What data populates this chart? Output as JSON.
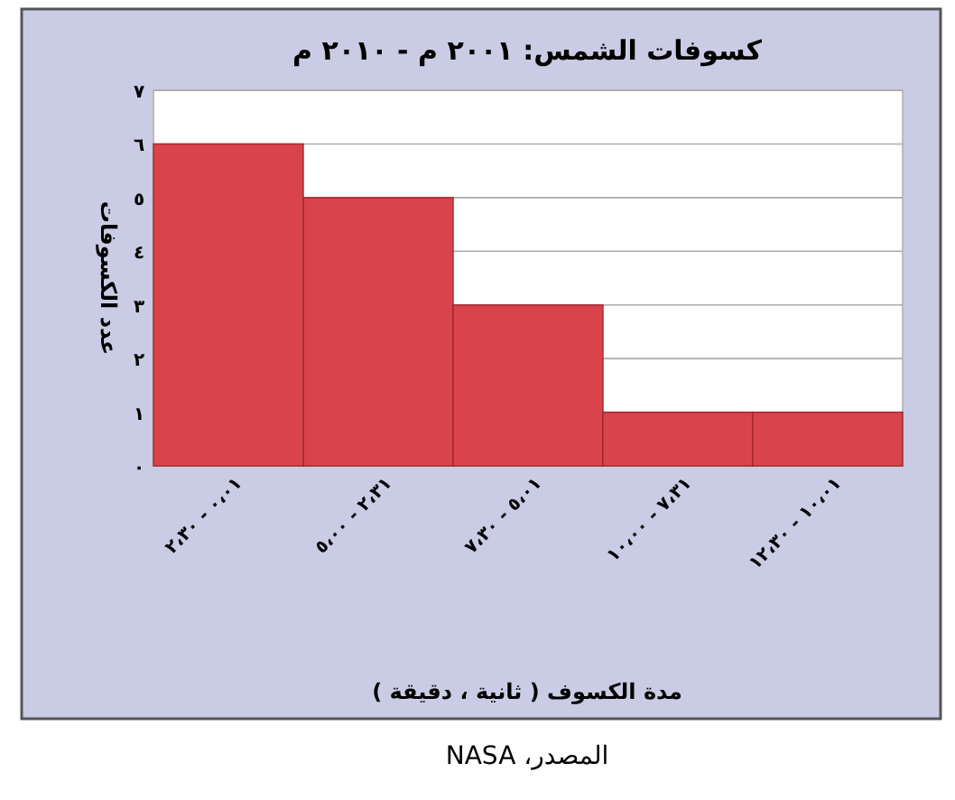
{
  "chart_data": {
    "type": "bar",
    "title": "كسوفات الشمس: ٢٠٠١ م - ٢٠١٠ م",
    "xlabel": "مدة الكسوف ( ثانية ، دقيقة )",
    "ylabel": "عدد الكسوفات",
    "categories": [
      "٠،٠١ - ٢،٣٠",
      "٢،٣١ - ٥،٠٠",
      "٥،٠١ - ٧،٣٠",
      "٧،٣١ - ١٠،٠٠",
      "١٠،٠١ - ١٢،٣٠"
    ],
    "values": [
      6,
      5,
      3,
      1,
      1
    ],
    "color": "#d9434c",
    "ylim": [
      0,
      7
    ],
    "yticks": [
      {
        "value": 0,
        "label": "٠"
      },
      {
        "value": 1,
        "label": "١"
      },
      {
        "value": 2,
        "label": "٢"
      },
      {
        "value": 3,
        "label": "٣"
      },
      {
        "value": 4,
        "label": "٤"
      },
      {
        "value": 5,
        "label": "٥"
      },
      {
        "value": 6,
        "label": "٦"
      },
      {
        "value": 7,
        "label": "٧"
      }
    ],
    "grid": "y",
    "annotations": [
      "المصدر، NASA"
    ]
  }
}
